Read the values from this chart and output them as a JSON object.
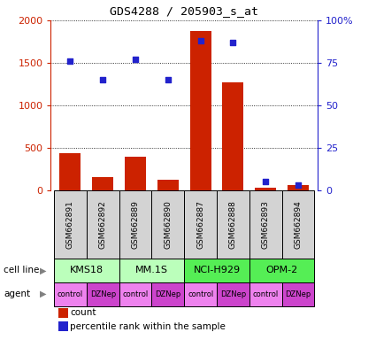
{
  "title": "GDS4288 / 205903_s_at",
  "samples": [
    "GSM662891",
    "GSM662892",
    "GSM662889",
    "GSM662890",
    "GSM662887",
    "GSM662888",
    "GSM662893",
    "GSM662894"
  ],
  "counts": [
    440,
    160,
    400,
    130,
    1880,
    1270,
    30,
    60
  ],
  "percentile_ranks": [
    76,
    65,
    77,
    65,
    88,
    87,
    5,
    3
  ],
  "cell_lines": [
    {
      "label": "KMS18",
      "start": 0,
      "end": 2,
      "color": "#bbffbb"
    },
    {
      "label": "MM.1S",
      "start": 2,
      "end": 4,
      "color": "#bbffbb"
    },
    {
      "label": "NCI-H929",
      "start": 4,
      "end": 6,
      "color": "#55ee55"
    },
    {
      "label": "OPM-2",
      "start": 6,
      "end": 8,
      "color": "#55ee55"
    }
  ],
  "agents": [
    "control",
    "DZNep",
    "control",
    "DZNep",
    "control",
    "DZNep",
    "control",
    "DZNep"
  ],
  "agent_color_control": "#ee82ee",
  "agent_color_DZNep": "#cc44cc",
  "ylim_left": [
    0,
    2000
  ],
  "ylim_right": [
    0,
    100
  ],
  "yticks_left": [
    0,
    500,
    1000,
    1500,
    2000
  ],
  "yticks_right": [
    0,
    25,
    50,
    75,
    100
  ],
  "ytick_labels_right": [
    "0",
    "25",
    "50",
    "75",
    "100%"
  ],
  "bar_color": "#cc2200",
  "scatter_color": "#2222cc",
  "grid_color": "#000000",
  "sample_box_color": "#d3d3d3",
  "left_axis_color": "#cc2200",
  "right_axis_color": "#2222cc",
  "legend_bar_label": "count",
  "legend_scatter_label": "percentile rank within the sample",
  "cell_line_label": "cell line",
  "agent_label": "agent"
}
